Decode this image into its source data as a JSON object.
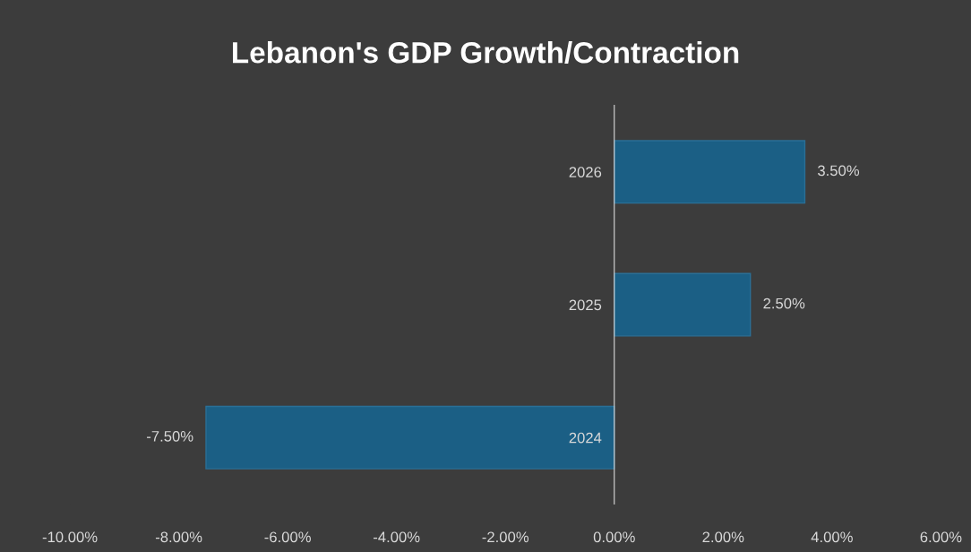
{
  "chart_data": {
    "type": "bar",
    "orientation": "horizontal",
    "title": "Lebanon's GDP Growth/Contraction",
    "categories": [
      "2026",
      "2025",
      "2024"
    ],
    "values": [
      3.5,
      2.5,
      -7.5
    ],
    "value_labels": [
      "3.50%",
      "2.50%",
      "-7.50%"
    ],
    "color": "#1b5f85",
    "xlim": [
      -10,
      6
    ],
    "xticks": [
      {
        "value": -10,
        "label": "-10.00%"
      },
      {
        "value": -8,
        "label": "-8.00%"
      },
      {
        "value": -6,
        "label": "-6.00%"
      },
      {
        "value": -4,
        "label": "-4.00%"
      },
      {
        "value": -2,
        "label": "-2.00%"
      },
      {
        "value": 0,
        "label": "0.00%"
      },
      {
        "value": 2,
        "label": "2.00%"
      },
      {
        "value": 4,
        "label": "4.00%"
      },
      {
        "value": 6,
        "label": "6.00%"
      }
    ],
    "grid": false,
    "legend": false
  }
}
